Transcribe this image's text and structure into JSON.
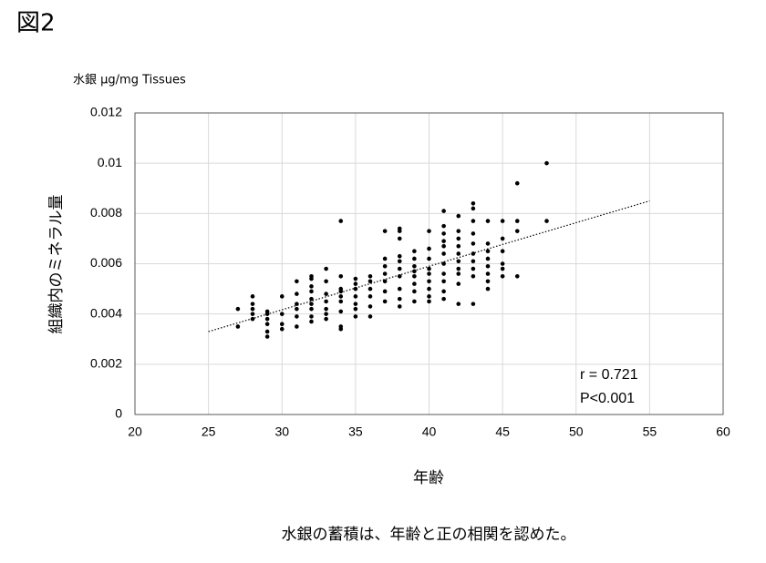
{
  "figure_label": "図2",
  "caption": "水銀の蓄積は、年齢と正の相関を認めた。",
  "chart_data": {
    "type": "scatter",
    "y_unit_label": "水銀 μg/mg Tissues",
    "ylabel": "組織内のミネラル量",
    "xlabel": "年齢",
    "annotations": [
      "r = 0.721",
      "P<0.001"
    ],
    "color": "#000000",
    "grid": true,
    "xlim": [
      20,
      60
    ],
    "xticks": [
      20,
      25,
      30,
      35,
      40,
      45,
      50,
      55,
      60
    ],
    "ylim": [
      0,
      0.012
    ],
    "yticks": [
      0,
      0.002,
      0.004,
      0.006,
      0.008,
      0.01,
      0.012
    ],
    "x": [
      27,
      27,
      28,
      28,
      28,
      28,
      28,
      29,
      29,
      29,
      29,
      29,
      29,
      30,
      30,
      30,
      30,
      31,
      31,
      31,
      31,
      31,
      31,
      32,
      32,
      32,
      32,
      32,
      32,
      32,
      32,
      32,
      33,
      33,
      33,
      33,
      33,
      33,
      33,
      34,
      34,
      34,
      34,
      34,
      34,
      34,
      34,
      34,
      35,
      35,
      35,
      35,
      35,
      35,
      35,
      36,
      36,
      36,
      36,
      36,
      36,
      37,
      37,
      37,
      37,
      37,
      37,
      37,
      38,
      38,
      38,
      38,
      38,
      38,
      38,
      38,
      38,
      38,
      39,
      39,
      39,
      39,
      39,
      39,
      39,
      39,
      40,
      40,
      40,
      40,
      40,
      40,
      40,
      40,
      40,
      41,
      41,
      41,
      41,
      41,
      41,
      41,
      41,
      41,
      41,
      41,
      42,
      42,
      42,
      42,
      42,
      42,
      42,
      42,
      42,
      42,
      43,
      43,
      43,
      43,
      43,
      43,
      43,
      43,
      43,
      43,
      44,
      44,
      44,
      44,
      44,
      44,
      44,
      44,
      45,
      45,
      45,
      45,
      45,
      45,
      46,
      46,
      46,
      46,
      48,
      48
    ],
    "values": [
      0.0035,
      0.0042,
      0.0038,
      0.004,
      0.0042,
      0.0044,
      0.0047,
      0.0031,
      0.0033,
      0.0036,
      0.0038,
      0.004,
      0.0041,
      0.0034,
      0.0036,
      0.004,
      0.0047,
      0.0035,
      0.0039,
      0.0042,
      0.0044,
      0.0048,
      0.0053,
      0.0037,
      0.0039,
      0.0042,
      0.0044,
      0.0046,
      0.0049,
      0.0051,
      0.0054,
      0.0055,
      0.0038,
      0.004,
      0.0042,
      0.0045,
      0.0048,
      0.0053,
      0.0058,
      0.0034,
      0.0035,
      0.0041,
      0.0045,
      0.0047,
      0.0049,
      0.005,
      0.0055,
      0.0077,
      0.0039,
      0.0042,
      0.0044,
      0.0047,
      0.005,
      0.0052,
      0.0054,
      0.0039,
      0.0043,
      0.0047,
      0.005,
      0.0053,
      0.0055,
      0.0045,
      0.0049,
      0.0053,
      0.0056,
      0.0059,
      0.0062,
      0.0073,
      0.0043,
      0.0046,
      0.005,
      0.0055,
      0.0058,
      0.0061,
      0.0063,
      0.007,
      0.0073,
      0.0074,
      0.0045,
      0.0049,
      0.0052,
      0.0055,
      0.0057,
      0.0059,
      0.0062,
      0.0065,
      0.0045,
      0.0047,
      0.005,
      0.0053,
      0.0056,
      0.0058,
      0.0062,
      0.0066,
      0.0073,
      0.0046,
      0.0049,
      0.0053,
      0.0056,
      0.006,
      0.0064,
      0.0067,
      0.0069,
      0.0072,
      0.0075,
      0.0081,
      0.0044,
      0.0052,
      0.0056,
      0.0058,
      0.0061,
      0.0064,
      0.0067,
      0.007,
      0.0073,
      0.0079,
      0.0044,
      0.0055,
      0.0058,
      0.0061,
      0.0064,
      0.0068,
      0.0072,
      0.0077,
      0.0082,
      0.0084,
      0.005,
      0.0053,
      0.0056,
      0.0059,
      0.0062,
      0.0065,
      0.0068,
      0.0077,
      0.0055,
      0.0058,
      0.006,
      0.0065,
      0.007,
      0.0077,
      0.0055,
      0.0073,
      0.0077,
      0.0092,
      0.0077,
      0.01
    ],
    "trendline": {
      "x": [
        25,
        55
      ],
      "y": [
        0.0033,
        0.0085
      ]
    }
  }
}
